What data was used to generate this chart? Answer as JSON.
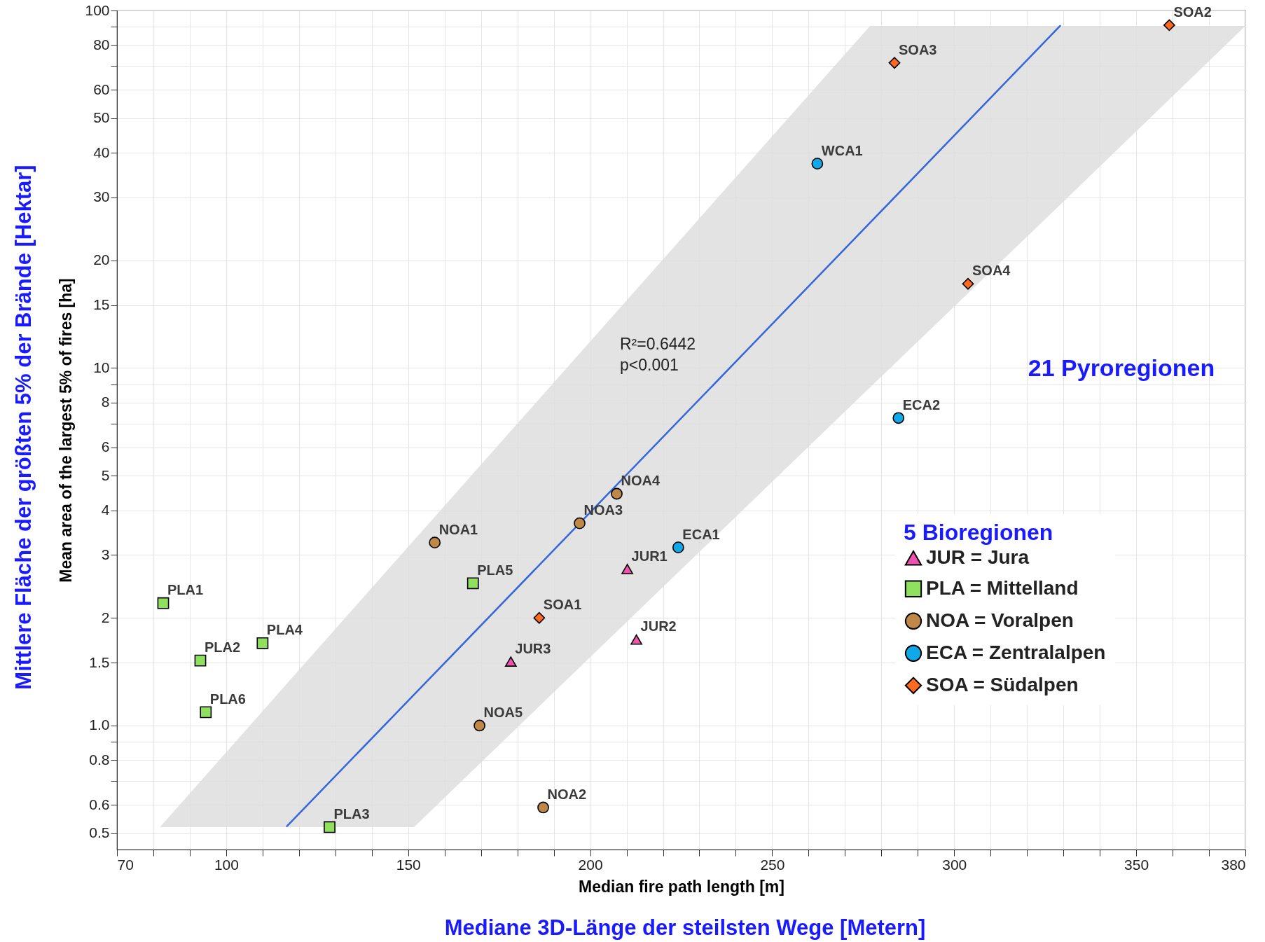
{
  "chart_data": {
    "type": "scatter",
    "ylabel": "Mean area of the largest 5% of fires [ha]",
    "xlabel": "Median fire path length [m]",
    "legend_title": "5 Bioregionen",
    "legend": "right",
    "log": "y",
    "grid": true,
    "xlim": [
      70,
      380
    ],
    "ylim": [
      0.45,
      100
    ],
    "xticks": [
      70,
      {
        "value": 80,
        "label": null
      },
      {
        "value": 90,
        "label": null
      },
      100,
      {
        "value": 110,
        "label": null
      },
      {
        "value": 120,
        "label": null
      },
      {
        "value": 130,
        "label": null
      },
      {
        "value": 140,
        "label": null
      },
      150,
      {
        "value": 160,
        "label": null
      },
      {
        "value": 170,
        "label": null
      },
      {
        "value": 180,
        "label": null
      },
      {
        "value": 190,
        "label": null
      },
      200,
      {
        "value": 210,
        "label": null
      },
      {
        "value": 220,
        "label": null
      },
      {
        "value": 230,
        "label": null
      },
      {
        "value": 240,
        "label": null
      },
      250,
      {
        "value": 260,
        "label": null
      },
      {
        "value": 270,
        "label": null
      },
      {
        "value": 280,
        "label": null
      },
      {
        "value": 290,
        "label": null
      },
      300,
      {
        "value": 310,
        "label": null
      },
      {
        "value": 320,
        "label": null
      },
      {
        "value": 330,
        "label": null
      },
      {
        "value": 340,
        "label": null
      },
      350,
      {
        "value": 360,
        "label": null
      },
      {
        "value": 370,
        "label": null
      },
      380
    ],
    "yticks": [
      0.5,
      0.6,
      {
        "value": 0.7,
        "label": null
      },
      0.8,
      {
        "value": 0.9,
        "label": null
      },
      {
        "value": 1,
        "label": "1.0"
      },
      1.5,
      2,
      3,
      4,
      5,
      6,
      {
        "value": 7,
        "label": null
      },
      8,
      {
        "value": 9,
        "label": null
      },
      10,
      15,
      20,
      30,
      40,
      50,
      60,
      {
        "value": 70,
        "label": null
      },
      80,
      {
        "value": 90,
        "label": null
      },
      100
    ],
    "series": [
      {
        "name": "JUR = Jura",
        "marker": "triangle",
        "color": "#f050b0",
        "x": [
          210.2,
          212.7,
          178.2
        ],
        "values": [
          2.74,
          1.74,
          1.51
        ]
      },
      {
        "name": "PLA = Mittelland",
        "marker": "square",
        "color": "#90e060",
        "x": [
          82.7,
          92.9,
          128.4,
          110,
          167.8,
          94.4
        ],
        "values": [
          2.2,
          1.52,
          0.52,
          1.7,
          2.5,
          1.09
        ]
      },
      {
        "name": "NOA = Voralpen",
        "marker": "circle",
        "color": "#c08848",
        "x": [
          157.3,
          187.1,
          197.1,
          207.3,
          169.6
        ],
        "values": [
          3.25,
          0.59,
          3.68,
          4.45,
          1.0
        ]
      },
      {
        "name": "ECA = Zentralalpen",
        "marker": "circle",
        "color": "#10a8e8",
        "x": [
          224.2,
          284.7,
          262.4
        ],
        "values": [
          3.15,
          7.25,
          37.3
        ]
      },
      {
        "name": "SOA = Südalpen",
        "marker": "diamond",
        "color": "#ff6a20",
        "x": [
          186,
          359.1,
          283.6,
          303.8
        ],
        "values": [
          2.0,
          91,
          71.4,
          17.2
        ]
      },
      {
        "type": "line",
        "color": "#3366dd",
        "x": [
          81.8,
          116.7,
          151.6,
          276.9,
          329.1,
          380
        ],
        "values": [
          null,
          0.523,
          1.22,
          25.5,
          90.6,
          null
        ],
        "lower": [
          0.52,
          0.52,
          0.52,
          8.83,
          28.6,
          90.6
        ],
        "upper": [
          0.52,
          1.31,
          3.3,
          90.6,
          90.6,
          90.6
        ]
      }
    ],
    "annotations": [
      "Mittlere Fläche der größten 5% der Brände [Hektar]",
      "Mediane 3D-Länge der steilsten Wege [Metern]",
      "21 Pyroregionen",
      "R²=0.6442",
      "p<0.001",
      {
        "text": "PLA1",
        "x": 82.7,
        "y": 2.2
      },
      {
        "text": "PLA2",
        "x": 92.9,
        "y": 1.52
      },
      {
        "text": "PLA6",
        "x": 94.4,
        "y": 1.09
      },
      {
        "text": "PLA4",
        "x": 110,
        "y": 1.7
      },
      {
        "text": "PLA3",
        "x": 128.4,
        "y": 0.52
      },
      {
        "text": "PLA5",
        "x": 167.8,
        "y": 2.5
      },
      {
        "text": "NOA1",
        "x": 157.3,
        "y": 3.25
      },
      {
        "text": "NOA3",
        "x": 197.1,
        "y": 3.68
      },
      {
        "text": "NOA4",
        "x": 207.3,
        "y": 4.45
      },
      {
        "text": "NOA5",
        "x": 169.6,
        "y": 1.0
      },
      {
        "text": "NOA2",
        "x": 187.1,
        "y": 0.59
      },
      {
        "text": "SOA1",
        "x": 186,
        "y": 2.0
      },
      {
        "text": "JUR1",
        "x": 210.2,
        "y": 2.74
      },
      {
        "text": "JUR2",
        "x": 212.7,
        "y": 1.74
      },
      {
        "text": "JUR3",
        "x": 178.2,
        "y": 1.51
      },
      {
        "text": "ECA1",
        "x": 224.2,
        "y": 3.15
      },
      {
        "text": "ECA2",
        "x": 284.7,
        "y": 7.25
      },
      {
        "text": "WCA1",
        "x": 262.4,
        "y": 37.3
      },
      {
        "text": "SOA3",
        "x": 283.6,
        "y": 71.4
      },
      {
        "text": "SOA2",
        "x": 359.1,
        "y": 91
      },
      {
        "text": "SOA4",
        "x": 303.8,
        "y": 17.2
      }
    ]
  }
}
